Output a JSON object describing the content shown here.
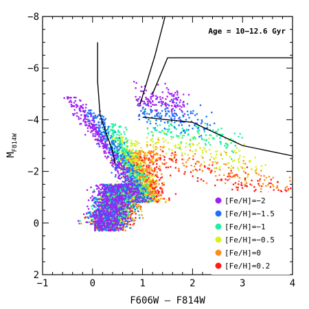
{
  "chart_data": {
    "type": "scatter",
    "title": "",
    "xlabel": "F606W – F814W",
    "ylabel_main": "M",
    "ylabel_sub": "F814W",
    "xlim": [
      -1,
      4
    ],
    "ylim": [
      2,
      -8
    ],
    "y_inverted": true,
    "grid": false,
    "x_ticks": [
      -1,
      0,
      1,
      2,
      3,
      4
    ],
    "x_tick_labels": [
      "−1",
      "0",
      "1",
      "2",
      "3",
      "4"
    ],
    "y_ticks": [
      -8,
      -6,
      -4,
      -2,
      0,
      2
    ],
    "y_tick_labels": [
      "−8",
      "−6",
      "−4",
      "−2",
      "0",
      "2"
    ],
    "annotation": "Age = 10−12.6 Gyr",
    "legend_position": "bottom-right",
    "series": [
      {
        "name": "[Fe/H]=−2",
        "feh": -2.0,
        "color": "#a020f0"
      },
      {
        "name": "[Fe/H]=−1.5",
        "feh": -1.5,
        "color": "#1e6fff"
      },
      {
        "name": "[Fe/H]=−1",
        "feh": -1.0,
        "color": "#20f0a0"
      },
      {
        "name": "[Fe/H]=−0.5",
        "feh": -0.5,
        "color": "#d8f020"
      },
      {
        "name": "[Fe/H]=0",
        "feh": 0.0,
        "color": "#ff8c1a"
      },
      {
        "name": "[Fe/H]=0.2",
        "feh": 0.2,
        "color": "#ff1a1a"
      }
    ],
    "reference_lines": [
      {
        "name": "isochrone-left",
        "points": [
          [
            0.1,
            -7.0
          ],
          [
            0.1,
            -5.5
          ],
          [
            0.15,
            -4.2
          ],
          [
            0.25,
            -3.6
          ],
          [
            0.4,
            -2.8
          ],
          [
            0.45,
            -2.3
          ]
        ]
      },
      {
        "name": "isochrone-steep",
        "points": [
          [
            0.95,
            -4.6
          ],
          [
            1.25,
            -6.5
          ],
          [
            1.45,
            -8.0
          ]
        ]
      },
      {
        "name": "isochrone-upper",
        "points": [
          [
            1.2,
            -5.0
          ],
          [
            1.5,
            -6.4
          ],
          [
            4.0,
            -6.4
          ]
        ]
      },
      {
        "name": "isochrone-lower",
        "points": [
          [
            1.0,
            -4.1
          ],
          [
            2.0,
            -3.9
          ],
          [
            3.0,
            -3.0
          ],
          [
            4.0,
            -2.6
          ]
        ]
      }
    ]
  }
}
